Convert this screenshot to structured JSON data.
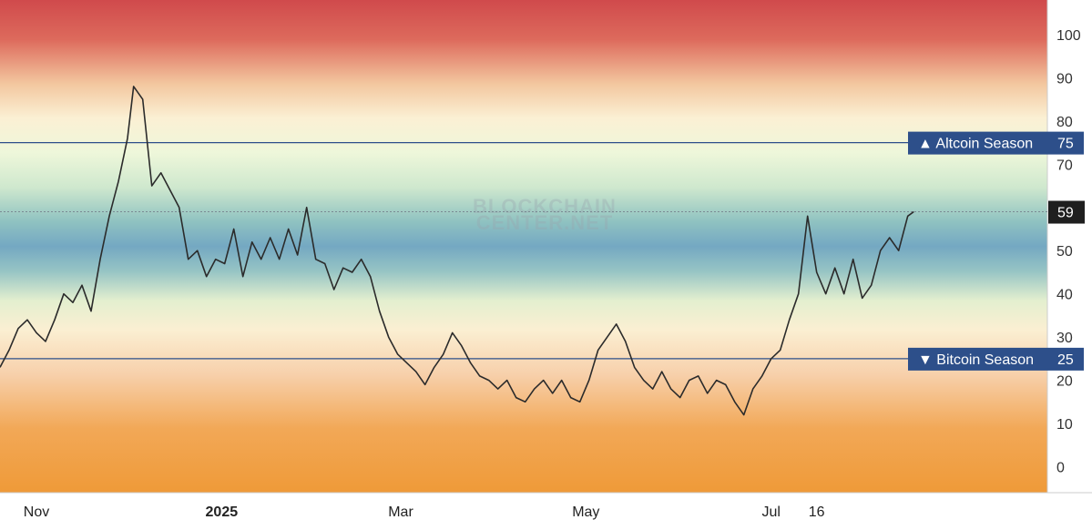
{
  "chart_data": {
    "type": "line",
    "title": "",
    "xlabel": "",
    "ylabel": "",
    "ylim": [
      -6,
      108
    ],
    "yticks": [
      0,
      10,
      20,
      30,
      40,
      50,
      60,
      70,
      80,
      90,
      100
    ],
    "x_tick_labels": [
      {
        "label": "Nov",
        "date": "2024-11-01",
        "bold": false
      },
      {
        "label": "2025",
        "date": "2025-01-01",
        "bold": true
      },
      {
        "label": "Mar",
        "date": "2025-03-01",
        "bold": false
      },
      {
        "label": "May",
        "date": "2025-05-01",
        "bold": false
      },
      {
        "label": "Jul",
        "date": "2025-07-01",
        "bold": false
      },
      {
        "label": "16",
        "date": "2025-07-16",
        "bold": false
      }
    ],
    "x_range": [
      "2024-10-20",
      "2025-09-30"
    ],
    "background": "red-to-orange gradient bands (red at top, green/blue middle, orange bottom)",
    "thresholds": [
      {
        "label": "▲ Altcoin Season",
        "value": 75,
        "color": "#2d4f8a"
      },
      {
        "label": "▼ Bitcoin Season",
        "value": 25,
        "color": "#2d4f8a"
      }
    ],
    "current_value": {
      "value": 59,
      "label": "59"
    },
    "watermark": "BLOCKCHAIN CENTER.NET",
    "series": [
      {
        "line_color": "#2b2b2b",
        "points": [
          [
            "2024-10-20",
            23
          ],
          [
            "2024-10-23",
            27
          ],
          [
            "2024-10-26",
            32
          ],
          [
            "2024-10-29",
            34
          ],
          [
            "2024-11-01",
            31
          ],
          [
            "2024-11-04",
            29
          ],
          [
            "2024-11-07",
            34
          ],
          [
            "2024-11-10",
            40
          ],
          [
            "2024-11-13",
            38
          ],
          [
            "2024-11-16",
            42
          ],
          [
            "2024-11-19",
            36
          ],
          [
            "2024-11-22",
            48
          ],
          [
            "2024-11-25",
            58
          ],
          [
            "2024-11-28",
            66
          ],
          [
            "2024-12-01",
            76
          ],
          [
            "2024-12-03",
            88
          ],
          [
            "2024-12-06",
            85
          ],
          [
            "2024-12-09",
            65
          ],
          [
            "2024-12-12",
            68
          ],
          [
            "2024-12-15",
            64
          ],
          [
            "2024-12-18",
            60
          ],
          [
            "2024-12-21",
            48
          ],
          [
            "2024-12-24",
            50
          ],
          [
            "2024-12-27",
            44
          ],
          [
            "2024-12-30",
            48
          ],
          [
            "2025-01-02",
            47
          ],
          [
            "2025-01-05",
            55
          ],
          [
            "2025-01-08",
            44
          ],
          [
            "2025-01-11",
            52
          ],
          [
            "2025-01-14",
            48
          ],
          [
            "2025-01-17",
            53
          ],
          [
            "2025-01-20",
            48
          ],
          [
            "2025-01-23",
            55
          ],
          [
            "2025-01-26",
            49
          ],
          [
            "2025-01-29",
            60
          ],
          [
            "2025-02-01",
            48
          ],
          [
            "2025-02-04",
            47
          ],
          [
            "2025-02-07",
            41
          ],
          [
            "2025-02-10",
            46
          ],
          [
            "2025-02-13",
            45
          ],
          [
            "2025-02-16",
            48
          ],
          [
            "2025-02-19",
            44
          ],
          [
            "2025-02-22",
            36
          ],
          [
            "2025-02-25",
            30
          ],
          [
            "2025-02-28",
            26
          ],
          [
            "2025-03-03",
            24
          ],
          [
            "2025-03-06",
            22
          ],
          [
            "2025-03-09",
            19
          ],
          [
            "2025-03-12",
            23
          ],
          [
            "2025-03-15",
            26
          ],
          [
            "2025-03-18",
            31
          ],
          [
            "2025-03-21",
            28
          ],
          [
            "2025-03-24",
            24
          ],
          [
            "2025-03-27",
            21
          ],
          [
            "2025-03-30",
            20
          ],
          [
            "2025-04-02",
            18
          ],
          [
            "2025-04-05",
            20
          ],
          [
            "2025-04-08",
            16
          ],
          [
            "2025-04-11",
            15
          ],
          [
            "2025-04-14",
            18
          ],
          [
            "2025-04-17",
            20
          ],
          [
            "2025-04-20",
            17
          ],
          [
            "2025-04-23",
            20
          ],
          [
            "2025-04-26",
            16
          ],
          [
            "2025-04-29",
            15
          ],
          [
            "2025-05-02",
            20
          ],
          [
            "2025-05-05",
            27
          ],
          [
            "2025-05-08",
            30
          ],
          [
            "2025-05-11",
            33
          ],
          [
            "2025-05-14",
            29
          ],
          [
            "2025-05-17",
            23
          ],
          [
            "2025-05-20",
            20
          ],
          [
            "2025-05-23",
            18
          ],
          [
            "2025-05-26",
            22
          ],
          [
            "2025-05-29",
            18
          ],
          [
            "2025-06-01",
            16
          ],
          [
            "2025-06-04",
            20
          ],
          [
            "2025-06-07",
            21
          ],
          [
            "2025-06-10",
            17
          ],
          [
            "2025-06-13",
            20
          ],
          [
            "2025-06-16",
            19
          ],
          [
            "2025-06-19",
            15
          ],
          [
            "2025-06-22",
            12
          ],
          [
            "2025-06-25",
            18
          ],
          [
            "2025-06-28",
            21
          ],
          [
            "2025-07-01",
            25
          ],
          [
            "2025-07-04",
            27
          ],
          [
            "2025-07-07",
            34
          ],
          [
            "2025-07-10",
            40
          ],
          [
            "2025-07-13",
            58
          ],
          [
            "2025-07-16",
            45
          ],
          [
            "2025-07-19",
            40
          ],
          [
            "2025-07-22",
            46
          ],
          [
            "2025-07-25",
            40
          ],
          [
            "2025-07-28",
            48
          ],
          [
            "2025-07-31",
            39
          ],
          [
            "2025-08-03",
            42
          ],
          [
            "2025-08-06",
            50
          ],
          [
            "2025-08-09",
            53
          ],
          [
            "2025-08-12",
            50
          ],
          [
            "2025-08-15",
            58
          ],
          [
            "2025-08-17",
            59
          ]
        ]
      }
    ]
  }
}
